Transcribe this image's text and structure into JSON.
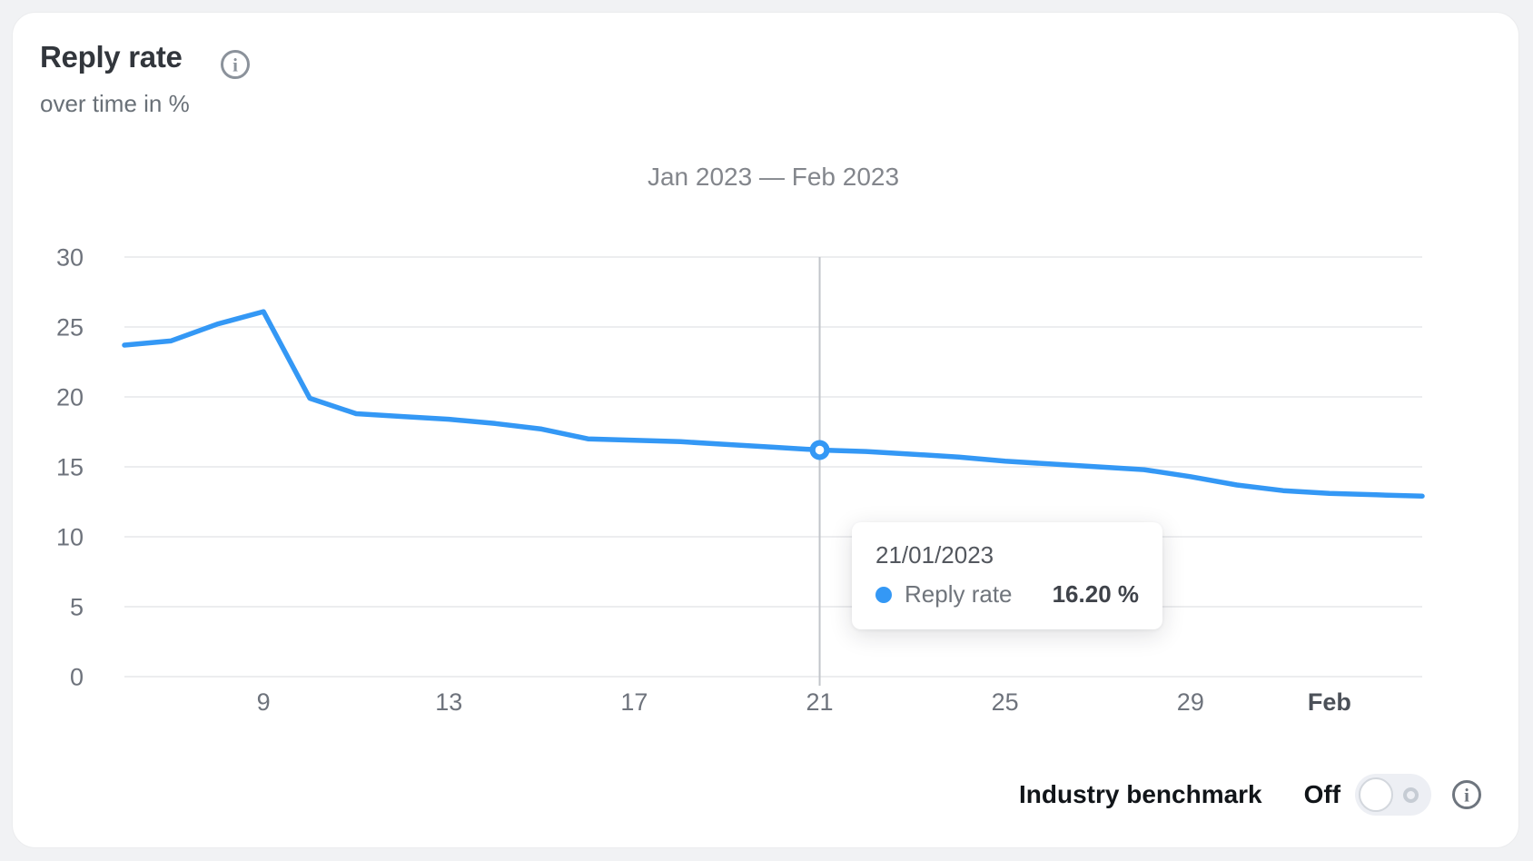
{
  "page": {
    "background": "#f1f2f4",
    "card_background": "#ffffff"
  },
  "header": {
    "title": "Reply rate",
    "subtitle": "over time in %"
  },
  "chart_data": {
    "type": "line",
    "title": "Jan 2023 — Feb 2023",
    "xlabel": "",
    "ylabel": "",
    "ylim": [
      0,
      30
    ],
    "grid": "horizontal",
    "y_ticks": [
      0,
      5,
      10,
      15,
      20,
      25,
      30
    ],
    "dates": [
      "06/01/2023",
      "07/01/2023",
      "08/01/2023",
      "09/01/2023",
      "10/01/2023",
      "11/01/2023",
      "12/01/2023",
      "13/01/2023",
      "14/01/2023",
      "15/01/2023",
      "16/01/2023",
      "17/01/2023",
      "18/01/2023",
      "19/01/2023",
      "20/01/2023",
      "21/01/2023",
      "22/01/2023",
      "23/01/2023",
      "24/01/2023",
      "25/01/2023",
      "26/01/2023",
      "27/01/2023",
      "28/01/2023",
      "29/01/2023",
      "30/01/2023",
      "31/01/2023",
      "01/02/2023",
      "02/02/2023",
      "03/02/2023"
    ],
    "series": [
      {
        "name": "Reply rate",
        "color": "#3498f5",
        "values": [
          23.7,
          24.0,
          25.2,
          26.1,
          19.9,
          18.8,
          18.6,
          18.4,
          18.1,
          17.7,
          17.0,
          16.9,
          16.8,
          16.6,
          16.4,
          16.2,
          16.1,
          15.9,
          15.7,
          15.4,
          15.2,
          15.0,
          14.8,
          14.3,
          13.7,
          13.3,
          13.1,
          13.0,
          12.9
        ]
      }
    ],
    "x_ticks": [
      {
        "index": 3,
        "label": "9",
        "bold": false
      },
      {
        "index": 7,
        "label": "13",
        "bold": false
      },
      {
        "index": 11,
        "label": "17",
        "bold": false
      },
      {
        "index": 15,
        "label": "21",
        "bold": false
      },
      {
        "index": 19,
        "label": "25",
        "bold": false
      },
      {
        "index": 23,
        "label": "29",
        "bold": false
      },
      {
        "index": 26,
        "label": "Feb",
        "bold": true
      }
    ],
    "highlight": {
      "index": 15,
      "date": "21/01/2023",
      "value_label": "16.20 %"
    }
  },
  "tooltip": {
    "date": "21/01/2023",
    "series_label": "Reply rate",
    "value": "16.20 %",
    "dot_color": "#3498f5"
  },
  "footer": {
    "benchmark_label": "Industry benchmark",
    "toggle_label": "Off",
    "toggle_state": "off"
  },
  "colors": {
    "accent_blue": "#3498f5",
    "gridline": "#ecedef",
    "axis_text": "#6e737c",
    "crosshair": "#c2c5ca"
  }
}
